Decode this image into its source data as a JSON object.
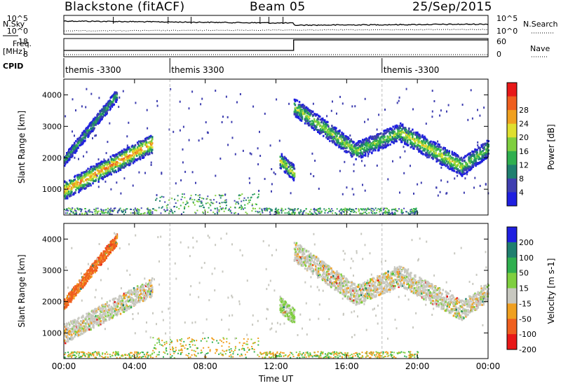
{
  "header": {
    "station": "Blackstone (fitACF)",
    "beam": "Beam 05",
    "date": "25/Sep/2015"
  },
  "parameter_panels": {
    "nsky": {
      "label": "N.Sky",
      "tick_top": "10^5",
      "tick_bottom": "10^0",
      "right_label": "N.Search",
      "right_tick_top": "10^5",
      "right_tick_bottom": "10^0"
    },
    "freq": {
      "label_line1": "Freq.",
      "label_line2": "[MHz]",
      "tick_top": "18",
      "tick_bottom": "8",
      "right_label": "Nave",
      "right_tick_top": "60",
      "right_tick_bottom": "0",
      "nave_step_time_hours": 13.0
    },
    "cpid": {
      "label": "CPID",
      "segments": [
        {
          "start_hours": 0.0,
          "label": "themis -3300"
        },
        {
          "start_hours": 6.0,
          "label": "themis 3300"
        },
        {
          "start_hours": 18.0,
          "label": "themis -3300"
        }
      ]
    }
  },
  "x_axis": {
    "label": "Time UT",
    "ticks": [
      "00:00",
      "04:00",
      "08:00",
      "12:00",
      "16:00",
      "20:00",
      "00:00"
    ],
    "range_hours": [
      0,
      24
    ]
  },
  "chart_data": [
    {
      "type": "heatmap",
      "title": "Power",
      "ylabel": "Slant Range [km]",
      "y_ticks": [
        "1000",
        "2000",
        "3000",
        "4000"
      ],
      "ylim": [
        180,
        4500
      ],
      "colorbar": {
        "label": "Power [dB]",
        "ticks": [
          "4",
          "8",
          "12",
          "16",
          "20",
          "24",
          "28"
        ],
        "range": [
          0,
          32
        ],
        "colors": [
          "#1f1fe0",
          "#3f3fb0",
          "#1f7f6f",
          "#2faf4f",
          "#7fcf3f",
          "#dfdf2f",
          "#f0a020",
          "#ef5f1f",
          "#e81818"
        ]
      },
      "scatter_bands": [
        {
          "t0": 0.0,
          "t1": 5.0,
          "r0": 950,
          "r1": 2450,
          "width": 300,
          "peak": 26
        },
        {
          "t0": 0.0,
          "t1": 3.0,
          "r0": 1900,
          "r1": 4000,
          "width": 180,
          "peak": 12
        },
        {
          "t0": 12.2,
          "t1": 13.0,
          "r0": 1900,
          "r1": 1500,
          "width": 250,
          "peak": 20
        },
        {
          "t0": 13.0,
          "t1": 16.5,
          "r0": 3600,
          "r1": 2200,
          "width": 280,
          "peak": 18
        },
        {
          "t0": 16.5,
          "t1": 19.0,
          "r0": 2200,
          "r1": 2800,
          "width": 280,
          "peak": 16
        },
        {
          "t0": 19.0,
          "t1": 22.5,
          "r0": 2800,
          "r1": 1700,
          "width": 300,
          "peak": 20
        },
        {
          "t0": 22.5,
          "t1": 24.0,
          "r0": 1700,
          "r1": 2300,
          "width": 280,
          "peak": 16
        }
      ]
    },
    {
      "type": "heatmap",
      "title": "Velocity",
      "ylabel": "Slant Range [km]",
      "y_ticks": [
        "1000",
        "2000",
        "3000",
        "4000"
      ],
      "ylim": [
        180,
        4500
      ],
      "colorbar": {
        "label": "Velocity [m s-1]",
        "ticks": [
          "200",
          "100",
          "50",
          "15",
          "-15",
          "-50",
          "-100",
          "-200"
        ],
        "range": [
          -250,
          250
        ],
        "colors": [
          "#1f1fe0",
          "#1f7f6f",
          "#2faf4f",
          "#7fcf3f",
          "#c8c8c0",
          "#f0a020",
          "#ef5f1f",
          "#e81818"
        ]
      },
      "scatter_bands": [
        {
          "t0": 0.0,
          "t1": 5.0,
          "r0": 950,
          "r1": 2450,
          "width": 300,
          "vel": 0
        },
        {
          "t0": 0.0,
          "t1": 3.0,
          "r0": 1900,
          "r1": 4000,
          "width": 180,
          "vel": -60
        },
        {
          "t0": 12.2,
          "t1": 13.0,
          "r0": 1900,
          "r1": 1500,
          "width": 250,
          "vel": 20
        },
        {
          "t0": 13.0,
          "t1": 16.5,
          "r0": 3600,
          "r1": 2200,
          "width": 320,
          "vel": 0
        },
        {
          "t0": 16.5,
          "t1": 19.0,
          "r0": 2200,
          "r1": 2800,
          "width": 320,
          "vel": 0
        },
        {
          "t0": 19.0,
          "t1": 22.5,
          "r0": 2800,
          "r1": 1700,
          "width": 320,
          "vel": 0
        },
        {
          "t0": 22.5,
          "t1": 24.0,
          "r0": 1700,
          "r1": 2300,
          "width": 300,
          "vel": 0
        }
      ]
    }
  ]
}
